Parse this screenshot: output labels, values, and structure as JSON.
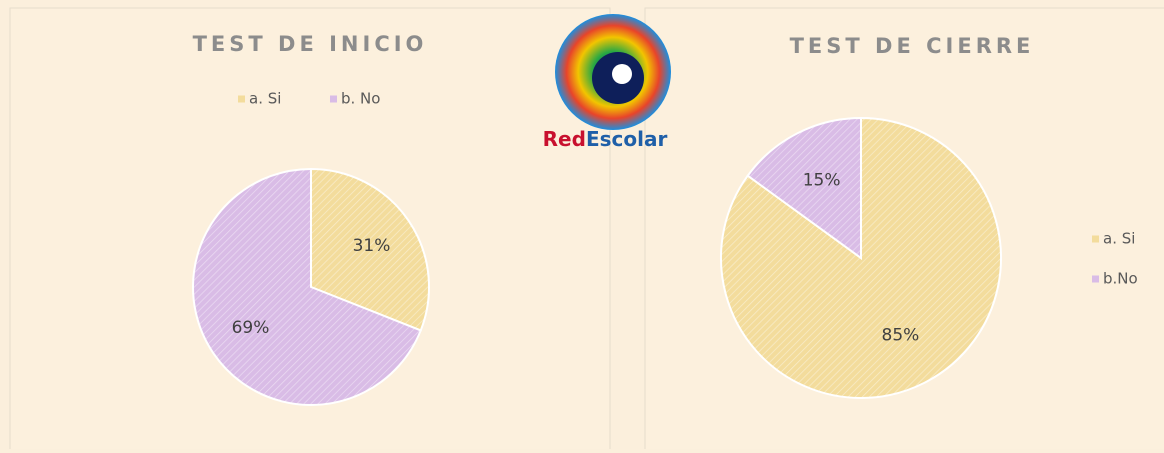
{
  "logo": [
    "Red",
    "Escolar"
  ],
  "chart_data": [
    {
      "type": "pie",
      "title": "TEST DE INICIO",
      "categories": [
        "a. Si",
        "b. No"
      ],
      "values": [
        31,
        69
      ],
      "value_labels": [
        "31%",
        "69%"
      ],
      "colors": [
        "#f3dc9c",
        "#d9bce6"
      ],
      "legend": "top"
    },
    {
      "type": "pie",
      "title": "TEST DE CIERRE",
      "categories": [
        "a. Si",
        "b.No"
      ],
      "values": [
        85,
        15
      ],
      "value_labels": [
        "85%",
        "15%"
      ],
      "colors": [
        "#f3dc9c",
        "#d9bce6"
      ],
      "legend": "right"
    }
  ]
}
